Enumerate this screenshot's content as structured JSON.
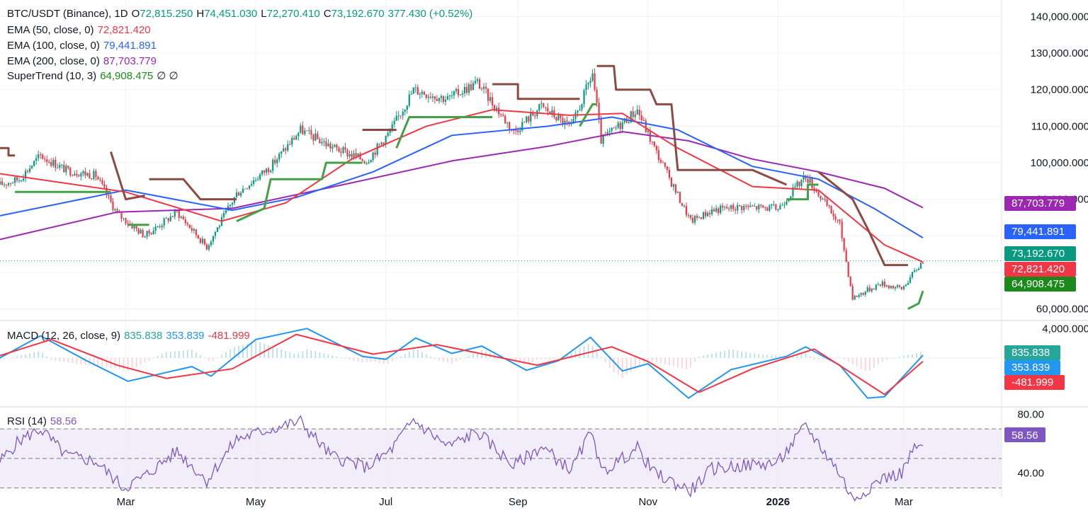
{
  "legend": {
    "symbol": "BTC/USDT (Binance), 1D",
    "o_label": "O",
    "o_value": "72,815.250",
    "h_label": "H",
    "h_value": "74,451.030",
    "l_label": "L",
    "l_value": "72,270.410",
    "c_label": "C",
    "c_value": "73,192.670",
    "change": "377.430 (+0.52%)",
    "ema50_label": "EMA (50, close, 0)",
    "ema50_value": "72,821.420",
    "ema100_label": "EMA (100, close, 0)",
    "ema100_value": "79,441.891",
    "ema200_label": "EMA (200, close, 0)",
    "ema200_value": "87,703.779",
    "st_label": "SuperTrend (10, 3)",
    "st_value": "64,908.475",
    "st_extra": "∅ ∅",
    "macd_label": "MACD (12, 26, close, 9)",
    "macd_hist": "835.838",
    "macd_macd": "353.839",
    "macd_signal": "-481.999",
    "rsi_label": "RSI (14)",
    "rsi_value": "58.56"
  },
  "colors": {
    "ema50": "#f23645",
    "ema100": "#2962ff",
    "ema200": "#9c27b0",
    "st_up": "#43a047",
    "st_down": "#8d4a43",
    "candle_up": "#089981",
    "candle_down": "#f23645",
    "rsi": "#7e57c2",
    "macd_line": "#2196f3",
    "signal_line": "#f23645"
  },
  "chart_data": [
    {
      "type": "candlestick",
      "title": "BTC/USDT (Binance), 1D",
      "y_ticks": [
        "140,000.000",
        "130,000.000",
        "120,000.000",
        "110,000.000",
        "100,000.000",
        "90,000.000",
        "60,000.000"
      ],
      "y_tick_values": [
        140000,
        130000,
        120000,
        110000,
        100000,
        90000,
        60000
      ],
      "ylim": [
        57000,
        143000
      ],
      "x_ticks": [
        "Mar",
        "May",
        "Jul",
        "Sep",
        "Nov",
        "2026",
        "Mar"
      ],
      "x_tick_dates": [
        "2025-03-01",
        "2025-05-01",
        "2025-07-01",
        "2025-09-01",
        "2025-11-01",
        "2026-01-01",
        "2026-03-01"
      ],
      "xlim": [
        "2025-01-01",
        "2026-03-10"
      ],
      "close_points": [
        [
          "2025-01-01",
          94000
        ],
        [
          "2025-01-10",
          95500
        ],
        [
          "2025-01-20",
          102000
        ],
        [
          "2025-02-01",
          98000
        ],
        [
          "2025-02-15",
          96500
        ],
        [
          "2025-02-25",
          86000
        ],
        [
          "2025-03-10",
          80000
        ],
        [
          "2025-03-25",
          86500
        ],
        [
          "2025-04-08",
          77000
        ],
        [
          "2025-04-22",
          91500
        ],
        [
          "2025-05-08",
          99000
        ],
        [
          "2025-05-22",
          109000
        ],
        [
          "2025-06-05",
          104500
        ],
        [
          "2025-06-22",
          100500
        ],
        [
          "2025-07-03",
          108500
        ],
        [
          "2025-07-14",
          120000
        ],
        [
          "2025-07-30",
          117500
        ],
        [
          "2025-08-13",
          122000
        ],
        [
          "2025-08-30",
          108500
        ],
        [
          "2025-09-12",
          115500
        ],
        [
          "2025-09-26",
          109500
        ],
        [
          "2025-10-06",
          124500
        ],
        [
          "2025-10-10",
          106000
        ],
        [
          "2025-10-27",
          114500
        ],
        [
          "2025-11-04",
          104000
        ],
        [
          "2025-11-21",
          84000
        ],
        [
          "2025-12-01",
          87000
        ],
        [
          "2025-12-15",
          88000
        ],
        [
          "2026-01-01",
          87500
        ],
        [
          "2026-01-14",
          96500
        ],
        [
          "2026-01-30",
          83000
        ],
        [
          "2026-02-05",
          63000
        ],
        [
          "2026-02-18",
          67000
        ],
        [
          "2026-02-28",
          65500
        ],
        [
          "2026-03-10",
          73192.67
        ]
      ],
      "ema50": {
        "last": 72821.42,
        "points": [
          [
            "2025-01-01",
            97000
          ],
          [
            "2025-03-01",
            92000
          ],
          [
            "2025-04-15",
            84000
          ],
          [
            "2025-05-15",
            89000
          ],
          [
            "2025-06-15",
            101000
          ],
          [
            "2025-07-20",
            110000
          ],
          [
            "2025-08-20",
            114500
          ],
          [
            "2025-09-25",
            113000
          ],
          [
            "2025-10-20",
            113500
          ],
          [
            "2025-11-15",
            104000
          ],
          [
            "2025-12-20",
            93500
          ],
          [
            "2026-01-20",
            92500
          ],
          [
            "2026-02-20",
            77500
          ],
          [
            "2026-03-10",
            72821.42
          ]
        ]
      },
      "ema100": {
        "last": 79441.891,
        "points": [
          [
            "2025-01-01",
            85500
          ],
          [
            "2025-03-01",
            92500
          ],
          [
            "2025-04-20",
            87000
          ],
          [
            "2025-05-20",
            90500
          ],
          [
            "2025-06-25",
            97500
          ],
          [
            "2025-08-01",
            107500
          ],
          [
            "2025-09-15",
            110000
          ],
          [
            "2025-10-15",
            112500
          ],
          [
            "2025-11-15",
            109000
          ],
          [
            "2025-12-20",
            99000
          ],
          [
            "2026-01-20",
            95500
          ],
          [
            "2026-02-15",
            87500
          ],
          [
            "2026-03-10",
            79441.891
          ]
        ]
      },
      "ema200": {
        "last": 87703.779,
        "points": [
          [
            "2025-01-01",
            79000
          ],
          [
            "2025-02-25",
            86500
          ],
          [
            "2025-04-20",
            87500
          ],
          [
            "2025-06-15",
            94500
          ],
          [
            "2025-08-01",
            100500
          ],
          [
            "2025-09-15",
            104500
          ],
          [
            "2025-10-20",
            108500
          ],
          [
            "2025-11-20",
            106000
          ],
          [
            "2025-12-20",
            101000
          ],
          [
            "2026-01-20",
            97500
          ],
          [
            "2026-02-20",
            93000
          ],
          [
            "2026-03-10",
            87703.779
          ]
        ]
      },
      "supertrend": {
        "last": 64908.475,
        "segments": [
          {
            "dir": "down",
            "points": [
              [
                "2025-01-01",
                104000
              ],
              [
                "2025-01-05",
                104000
              ],
              [
                "2025-01-05",
                102000
              ],
              [
                "2025-01-08",
                102000
              ]
            ]
          },
          {
            "dir": "up",
            "points": [
              [
                "2025-01-08",
                92000
              ],
              [
                "2025-02-22",
                92000
              ]
            ]
          },
          {
            "dir": "down",
            "points": [
              [
                "2025-02-22",
                103000
              ],
              [
                "2025-03-01",
                90000
              ],
              [
                "2025-03-10",
                91000
              ]
            ]
          },
          {
            "dir": "up",
            "points": [
              [
                "2025-03-02",
                83000
              ],
              [
                "2025-03-12",
                83000
              ]
            ]
          },
          {
            "dir": "down",
            "points": [
              [
                "2025-03-12",
                95500
              ],
              [
                "2025-03-28",
                95500
              ],
              [
                "2025-04-05",
                90000
              ],
              [
                "2025-04-22",
                90000
              ]
            ]
          },
          {
            "dir": "up",
            "points": [
              [
                "2025-04-22",
                84000
              ],
              [
                "2025-05-05",
                87500
              ],
              [
                "2025-05-08",
                95500
              ],
              [
                "2025-06-01",
                95500
              ],
              [
                "2025-06-03",
                100000
              ],
              [
                "2025-06-20",
                100000
              ]
            ]
          },
          {
            "dir": "down",
            "points": [
              [
                "2025-06-20",
                109000
              ],
              [
                "2025-07-06",
                109000
              ]
            ]
          },
          {
            "dir": "up",
            "points": [
              [
                "2025-07-06",
                104000
              ],
              [
                "2025-07-12",
                112500
              ],
              [
                "2025-08-20",
                112500
              ]
            ]
          },
          {
            "dir": "down",
            "points": [
              [
                "2025-08-20",
                121500
              ],
              [
                "2025-09-01",
                121500
              ],
              [
                "2025-09-01",
                117500
              ],
              [
                "2025-09-30",
                117500
              ]
            ]
          },
          {
            "dir": "up",
            "points": [
              [
                "2025-09-30",
                110000
              ],
              [
                "2025-10-06",
                116000
              ],
              [
                "2025-10-08",
                116000
              ]
            ]
          },
          {
            "dir": "down",
            "points": [
              [
                "2025-10-08",
                126500
              ],
              [
                "2025-10-16",
                126500
              ],
              [
                "2025-10-17",
                120000
              ],
              [
                "2025-11-02",
                120000
              ],
              [
                "2025-11-05",
                116000
              ],
              [
                "2025-11-12",
                116000
              ],
              [
                "2025-11-15",
                98000
              ],
              [
                "2025-12-20",
                98000
              ],
              [
                "2026-01-05",
                94000
              ]
            ]
          },
          {
            "dir": "up",
            "points": [
              [
                "2026-01-05",
                90000
              ],
              [
                "2026-01-15",
                90000
              ],
              [
                "2026-01-15",
                94000
              ],
              [
                "2026-01-20",
                94000
              ]
            ]
          },
          {
            "dir": "down",
            "points": [
              [
                "2026-01-20",
                97500
              ],
              [
                "2026-02-05",
                90000
              ],
              [
                "2026-02-12",
                82000
              ],
              [
                "2026-02-20",
                72000
              ],
              [
                "2026-03-03",
                72000
              ]
            ]
          },
          {
            "dir": "up",
            "points": [
              [
                "2026-03-03",
                60000
              ],
              [
                "2026-03-08",
                61500
              ],
              [
                "2026-03-10",
                64908.475
              ]
            ]
          }
        ]
      },
      "value_tags": [
        "87,703.779",
        "79,441.891",
        "73,192.670",
        "72,821.420",
        "64,908.475"
      ]
    },
    {
      "type": "macd",
      "title": "MACD (12, 26, close, 9)",
      "y_ticks": [
        "4,000.000"
      ],
      "y_tick_values": [
        4000
      ],
      "ylim": [
        -6500,
        4800
      ],
      "macd_points": [
        [
          "2025-01-01",
          0
        ],
        [
          "2025-01-20",
          3000
        ],
        [
          "2025-02-10",
          -300
        ],
        [
          "2025-03-02",
          -3200
        ],
        [
          "2025-04-01",
          -1200
        ],
        [
          "2025-04-10",
          -2500
        ],
        [
          "2025-05-01",
          2500
        ],
        [
          "2025-05-25",
          4000
        ],
        [
          "2025-06-20",
          200
        ],
        [
          "2025-07-01",
          -200
        ],
        [
          "2025-07-15",
          2700
        ],
        [
          "2025-08-01",
          600
        ],
        [
          "2025-08-15",
          1600
        ],
        [
          "2025-09-05",
          -1700
        ],
        [
          "2025-09-20",
          -400
        ],
        [
          "2025-10-05",
          2800
        ],
        [
          "2025-10-20",
          -1800
        ],
        [
          "2025-11-01",
          -800
        ],
        [
          "2025-11-20",
          -5500
        ],
        [
          "2025-12-10",
          -1600
        ],
        [
          "2026-01-05",
          200
        ],
        [
          "2026-01-14",
          1500
        ],
        [
          "2026-01-30",
          -1000
        ],
        [
          "2026-02-12",
          -5500
        ],
        [
          "2026-02-20",
          -5300
        ],
        [
          "2026-03-10",
          353.839
        ]
      ],
      "signal_points": [
        [
          "2025-01-01",
          300
        ],
        [
          "2025-01-25",
          2500
        ],
        [
          "2025-02-25",
          -1000
        ],
        [
          "2025-03-20",
          -2800
        ],
        [
          "2025-04-20",
          -1500
        ],
        [
          "2025-05-20",
          3200
        ],
        [
          "2025-06-25",
          500
        ],
        [
          "2025-07-25",
          1800
        ],
        [
          "2025-09-10",
          -1000
        ],
        [
          "2025-10-15",
          1500
        ],
        [
          "2025-11-01",
          -500
        ],
        [
          "2025-11-25",
          -4700
        ],
        [
          "2025-12-20",
          -1500
        ],
        [
          "2026-01-18",
          1200
        ],
        [
          "2026-02-20",
          -5000
        ],
        [
          "2026-03-10",
          -481.999
        ]
      ],
      "histogram_last": 835.838,
      "value_tags": [
        "835.838",
        "353.839",
        "-481.999"
      ]
    },
    {
      "type": "line",
      "title": "RSI (14)",
      "y_ticks": [
        "80.00",
        "40.00"
      ],
      "y_tick_values": [
        80,
        40
      ],
      "ylim": [
        25,
        84
      ],
      "bands": [
        70,
        50,
        30
      ],
      "rsi_points": [
        [
          "2025-01-01",
          48
        ],
        [
          "2025-01-10",
          62
        ],
        [
          "2025-01-20",
          70
        ],
        [
          "2025-02-01",
          52
        ],
        [
          "2025-02-15",
          48
        ],
        [
          "2025-02-28",
          30
        ],
        [
          "2025-03-10",
          38
        ],
        [
          "2025-03-25",
          55
        ],
        [
          "2025-04-08",
          35
        ],
        [
          "2025-04-22",
          63
        ],
        [
          "2025-05-08",
          70
        ],
        [
          "2025-05-22",
          75
        ],
        [
          "2025-06-05",
          52
        ],
        [
          "2025-06-22",
          44
        ],
        [
          "2025-07-03",
          55
        ],
        [
          "2025-07-14",
          76
        ],
        [
          "2025-07-30",
          58
        ],
        [
          "2025-08-13",
          68
        ],
        [
          "2025-08-30",
          45
        ],
        [
          "2025-09-12",
          58
        ],
        [
          "2025-09-26",
          42
        ],
        [
          "2025-10-06",
          70
        ],
        [
          "2025-10-10",
          40
        ],
        [
          "2025-10-27",
          57
        ],
        [
          "2025-11-04",
          40
        ],
        [
          "2025-11-21",
          28
        ],
        [
          "2025-12-01",
          43
        ],
        [
          "2025-12-15",
          45
        ],
        [
          "2026-01-01",
          47
        ],
        [
          "2026-01-14",
          72
        ],
        [
          "2026-01-30",
          40
        ],
        [
          "2026-02-05",
          22
        ],
        [
          "2026-02-18",
          36
        ],
        [
          "2026-02-28",
          40
        ],
        [
          "2026-03-05",
          55
        ],
        [
          "2026-03-10",
          58.56
        ]
      ],
      "value_tags": [
        "58.56"
      ]
    }
  ]
}
